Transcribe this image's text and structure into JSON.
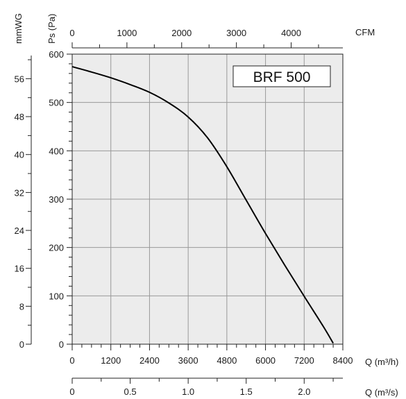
{
  "chart_data": {
    "type": "line",
    "title": "BRF 500",
    "series": [
      {
        "x": [
          0,
          600,
          1200,
          1800,
          2400,
          3000,
          3600,
          4200,
          4800,
          5400,
          6000,
          6600,
          7200,
          7800,
          8100
        ],
        "values": [
          574,
          563,
          551,
          537,
          521,
          499,
          470,
          427,
          367,
          298,
          229,
          163,
          99,
          36,
          2
        ]
      }
    ],
    "axes": {
      "x_bottom": {
        "label": "Q (m³/h)",
        "range": [
          0,
          8400
        ],
        "ticks": [
          "0",
          "1200",
          "2400",
          "3600",
          "4800",
          "6000",
          "7200",
          "8400"
        ]
      },
      "x_top": {
        "label": "CFM",
        "ticks": [
          "0",
          "1000",
          "2000",
          "3000",
          "4000"
        ]
      },
      "x_secondary": {
        "label": "Q (m³/s)",
        "ticks": [
          "0",
          "0.5",
          "1.0",
          "1.5",
          "2.0"
        ]
      },
      "y_left": {
        "label": "Ps (Pa)",
        "range": [
          0,
          600
        ],
        "ticks": [
          "0",
          "100",
          "200",
          "300",
          "400",
          "500",
          "600"
        ]
      },
      "y_outer": {
        "label": "mmWG",
        "ticks": [
          "0",
          "8",
          "16",
          "24",
          "32",
          "40",
          "48",
          "56"
        ]
      }
    },
    "grid": true,
    "colors": {
      "plot_bg": "#ececec",
      "grid": "#999999",
      "curve": "#000000",
      "axis": "#222222"
    }
  }
}
